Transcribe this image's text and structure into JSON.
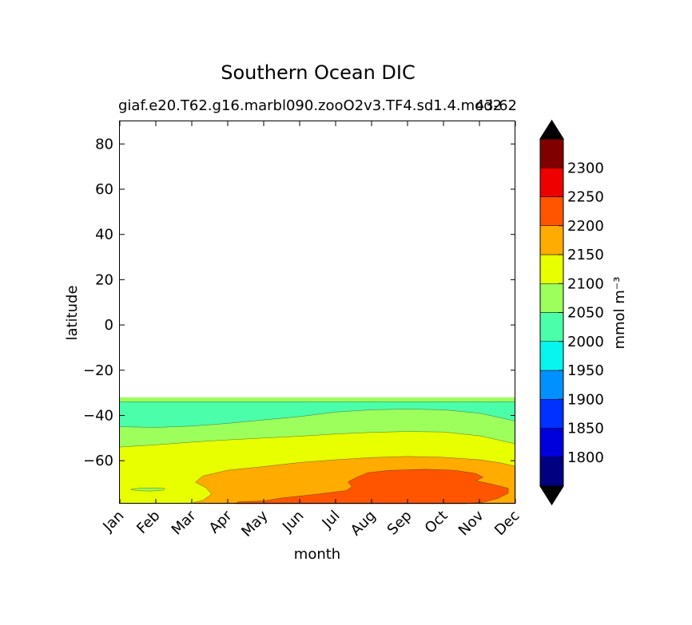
{
  "chart_data": {
    "type": "heatmap",
    "title": "Southern Ocean DIC",
    "subtitle_left": "giaf.e20.T62.g16.marbl090.zooO2v3.TF4.sd1.4.mod2",
    "subtitle_right": "43-62",
    "xlabel": "month",
    "ylabel": "latitude",
    "x_categories": [
      "Jan",
      "Feb",
      "Mar",
      "Apr",
      "May",
      "Jun",
      "Jul",
      "Aug",
      "Sep",
      "Oct",
      "Nov",
      "Dec"
    ],
    "y_ticks": [
      80,
      60,
      40,
      20,
      0,
      -20,
      -40,
      -60
    ],
    "y_tick_labels": [
      "80",
      "60",
      "40",
      "20",
      "0",
      "−20",
      "−40",
      "−60"
    ],
    "ylim": [
      -79,
      90
    ],
    "colorbar": {
      "label": "mmol m⁻³",
      "levels": [
        1750,
        1800,
        1850,
        1900,
        1950,
        2000,
        2050,
        2100,
        2150,
        2200,
        2250,
        2300,
        2350
      ],
      "tick_values": [
        1800,
        1850,
        1900,
        1950,
        2000,
        2050,
        2100,
        2150,
        2200,
        2250,
        2300
      ],
      "tick_labels": [
        "1800",
        "1850",
        "1900",
        "1950",
        "2000",
        "2050",
        "2100",
        "2150",
        "2200",
        "2250",
        "2300"
      ],
      "colors": [
        "#000080",
        "#0000dd",
        "#0031ff",
        "#0091ff",
        "#08f4ef",
        "#4bffaa",
        "#9cff5c",
        "#e8ff00",
        "#ffab00",
        "#ff5500",
        "#ee0000",
        "#800000"
      ],
      "extend": "both",
      "under_color": "#000000",
      "over_color": "#000000"
    },
    "regions": [
      {
        "name": "band-2050-north",
        "value_range": [
          2050,
          2100
        ],
        "color": "#9cff5c",
        "upper": [
          [
            1,
            -32
          ],
          [
            12,
            -32
          ]
        ],
        "lower": [
          [
            1,
            -34
          ],
          [
            12,
            -34
          ]
        ]
      },
      {
        "name": "band-2000",
        "value_range": [
          2000,
          2050
        ],
        "color": "#4bffaa",
        "upper": [
          [
            1,
            -34
          ],
          [
            12,
            -34
          ]
        ],
        "lower": [
          [
            1,
            -45
          ],
          [
            2,
            -45.3
          ],
          [
            3,
            -44.7
          ],
          [
            4,
            -43.5
          ],
          [
            5,
            -42
          ],
          [
            6,
            -40.5
          ],
          [
            7,
            -38.5
          ],
          [
            8,
            -37.5
          ],
          [
            9,
            -37.2
          ],
          [
            10,
            -37.5
          ],
          [
            11,
            -39
          ],
          [
            12,
            -42.5
          ]
        ]
      },
      {
        "name": "band-2050-south",
        "value_range": [
          2050,
          2100
        ],
        "color": "#9cff5c",
        "upper": [
          [
            1,
            -45
          ],
          [
            2,
            -45.3
          ],
          [
            3,
            -44.7
          ],
          [
            4,
            -43.5
          ],
          [
            5,
            -42
          ],
          [
            6,
            -40.5
          ],
          [
            7,
            -38.5
          ],
          [
            8,
            -37.5
          ],
          [
            9,
            -37.2
          ],
          [
            10,
            -37.5
          ],
          [
            11,
            -39
          ],
          [
            12,
            -42.5
          ]
        ],
        "lower": [
          [
            1,
            -54
          ],
          [
            2,
            -53
          ],
          [
            3,
            -51.8
          ],
          [
            4,
            -50.8
          ],
          [
            5,
            -50
          ],
          [
            6,
            -49.2
          ],
          [
            7,
            -48.2
          ],
          [
            8,
            -47.5
          ],
          [
            9,
            -47.1
          ],
          [
            10,
            -47.3
          ],
          [
            11,
            -49
          ],
          [
            12,
            -52.5
          ]
        ]
      },
      {
        "name": "band-2100",
        "value_range": [
          2100,
          2150
        ],
        "color": "#e8ff00",
        "upper": [
          [
            1,
            -54
          ],
          [
            2,
            -53
          ],
          [
            3,
            -51.8
          ],
          [
            4,
            -50.8
          ],
          [
            5,
            -50
          ],
          [
            6,
            -49.2
          ],
          [
            7,
            -48.2
          ],
          [
            8,
            -47.5
          ],
          [
            9,
            -47.1
          ],
          [
            10,
            -47.3
          ],
          [
            11,
            -49
          ],
          [
            12,
            -52.5
          ]
        ],
        "lower": [
          [
            1,
            -79
          ],
          [
            12,
            -79
          ]
        ]
      }
    ],
    "patches": [
      {
        "name": "patch-2150",
        "value_range": [
          2150,
          2200
        ],
        "color": "#ffab00",
        "polygon": [
          [
            3.05,
            -78.5
          ],
          [
            3.3,
            -77.6
          ],
          [
            3.55,
            -74.8
          ],
          [
            3.4,
            -72
          ],
          [
            3.1,
            -69.5
          ],
          [
            3.3,
            -66.8
          ],
          [
            4,
            -64.2
          ],
          [
            5,
            -62.6
          ],
          [
            6,
            -60.8
          ],
          [
            7,
            -59.6
          ],
          [
            8,
            -58.6
          ],
          [
            9,
            -58.1
          ],
          [
            10,
            -58.5
          ],
          [
            11,
            -59.6
          ],
          [
            11.6,
            -61
          ],
          [
            12,
            -62.5
          ],
          [
            12,
            -79
          ],
          [
            3.05,
            -79
          ]
        ]
      },
      {
        "name": "patch-2200",
        "value_range": [
          2200,
          2250
        ],
        "color": "#ff5500",
        "polygon": [
          [
            4.2,
            -79
          ],
          [
            4.3,
            -78.2
          ],
          [
            5,
            -77.8
          ],
          [
            5.5,
            -76.5
          ],
          [
            6.5,
            -74.8
          ],
          [
            7.3,
            -73.2
          ],
          [
            7.45,
            -71.5
          ],
          [
            7.35,
            -69.3
          ],
          [
            7.6,
            -67.3
          ],
          [
            7.9,
            -65.3
          ],
          [
            8.5,
            -64.3
          ],
          [
            9.5,
            -63.8
          ],
          [
            10.3,
            -64.2
          ],
          [
            10.9,
            -65.7
          ],
          [
            11.1,
            -67.3
          ],
          [
            10.9,
            -68.9
          ],
          [
            11.3,
            -70.2
          ],
          [
            11.8,
            -72.2
          ],
          [
            11.8,
            -74.4
          ],
          [
            11.5,
            -76.7
          ],
          [
            11.1,
            -78.4
          ],
          [
            10.6,
            -79
          ]
        ]
      },
      {
        "name": "patch-2050-feb",
        "value_range": [
          2050,
          2100
        ],
        "color": "#9cff5c",
        "polygon": [
          [
            1.3,
            -72.7
          ],
          [
            1.6,
            -72.1
          ],
          [
            2.0,
            -72.0
          ],
          [
            2.25,
            -72.3
          ],
          [
            2.2,
            -73.0
          ],
          [
            1.9,
            -73.4
          ],
          [
            1.5,
            -73.3
          ]
        ]
      }
    ]
  }
}
